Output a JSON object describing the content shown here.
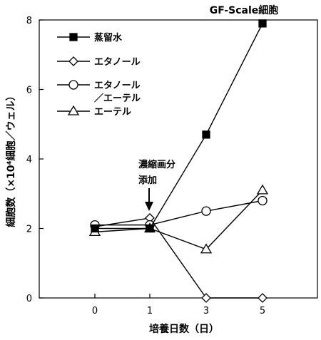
{
  "chart_data": {
    "type": "line",
    "title": "GF-Scale細胞",
    "xlabel": "培養日数（日）",
    "ylabel": "細胞数（×10⁴細胞／ウェル）",
    "categories": [
      "0",
      "1",
      "3",
      "5"
    ],
    "yticks": [
      "0",
      "2",
      "4",
      "6",
      "8"
    ],
    "ylim": [
      0,
      8
    ],
    "grid": false,
    "legend_position": "top-left",
    "annotation": {
      "line1": "濃縮画分",
      "line2": "添加",
      "at_x": "1"
    },
    "series": [
      {
        "name": "蒸留水",
        "marker": "filled-square",
        "values": [
          2.0,
          2.0,
          4.7,
          7.9
        ]
      },
      {
        "name": "エタノール",
        "marker": "open-diamond",
        "values": [
          2.05,
          2.3,
          0.0,
          0.0
        ]
      },
      {
        "name": "エタノール／エーテル",
        "name_line1": "エタノール",
        "name_line2": "／エーテル",
        "marker": "open-circle",
        "values": [
          2.1,
          2.1,
          2.5,
          2.8
        ]
      },
      {
        "name": "エーテル",
        "marker": "open-triangle",
        "values": [
          1.9,
          2.0,
          1.4,
          3.1
        ]
      }
    ]
  }
}
